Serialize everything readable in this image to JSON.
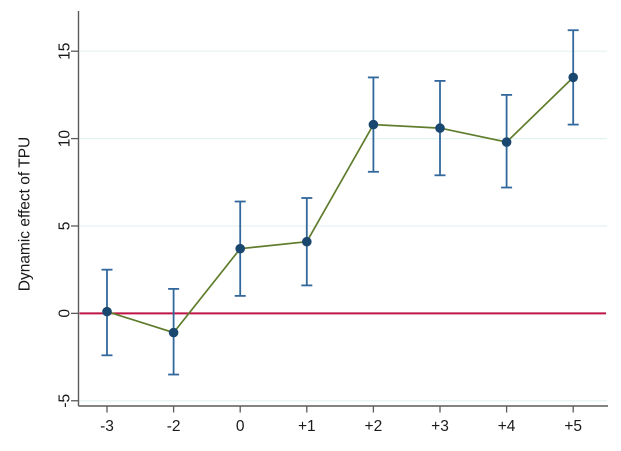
{
  "chart_data": {
    "type": "line",
    "title": "",
    "subtitle": "",
    "xlabel": "",
    "ylabel": "Dynamic effect of TPU",
    "categories": [
      "-3",
      "-2",
      "0",
      "+1",
      "+2",
      "+3",
      "+4",
      "+5"
    ],
    "series": [
      {
        "name": "Dynamic effect of TPU",
        "values": [
          0.1,
          -1.1,
          3.7,
          4.1,
          10.8,
          10.6,
          9.8,
          13.5
        ],
        "ci_low": [
          -2.4,
          -3.5,
          1.0,
          1.6,
          8.1,
          7.9,
          7.2,
          10.8
        ],
        "ci_high": [
          2.5,
          1.4,
          6.4,
          6.6,
          13.5,
          13.3,
          12.5,
          16.2
        ]
      }
    ],
    "yticks": [
      -5,
      0,
      5,
      10,
      15
    ],
    "ylim": [
      -5.3,
      17.3
    ],
    "refline_y": 0,
    "grid": true,
    "legend": false,
    "marker": "circle",
    "colors": {
      "line": "#5f7d2d",
      "marker": "#1a476f",
      "error_bar": "#33689c",
      "refline": "#be1446",
      "gridline": "#e4f2f2",
      "axis": "#5a5a5a",
      "text": "#1a1a1a",
      "background": "#ffffff"
    }
  }
}
